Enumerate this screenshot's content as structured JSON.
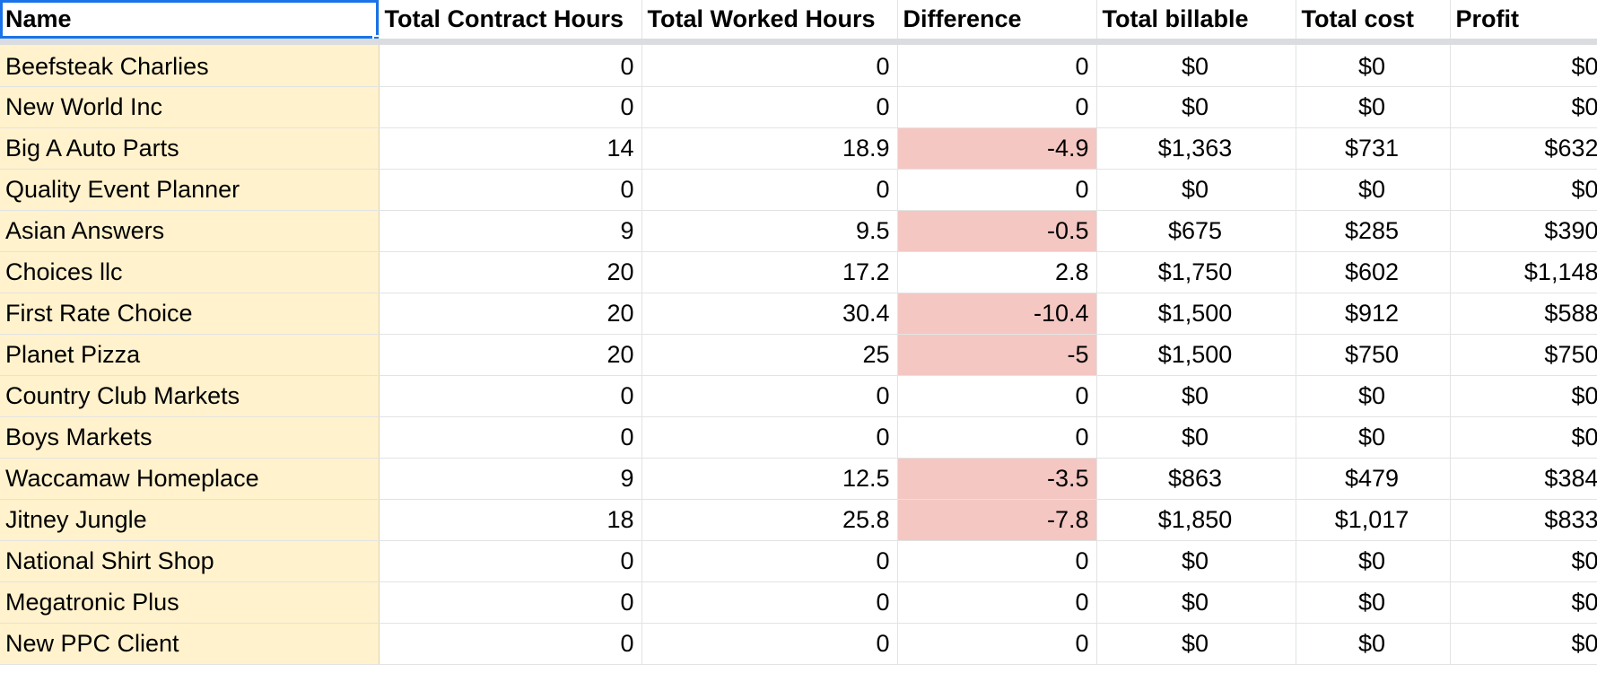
{
  "sheet": {
    "columns": [
      "Name",
      "Total Contract Hours",
      "Total Worked Hours",
      "Difference",
      "Total billable",
      "Total cost",
      "Profit"
    ],
    "rows": [
      {
        "name": "Beefsteak Charlies",
        "contract": "0",
        "worked": "0",
        "difference": "0",
        "billable": "$0",
        "cost": "$0",
        "profit": "$0",
        "negative": false
      },
      {
        "name": "New World Inc",
        "contract": "0",
        "worked": "0",
        "difference": "0",
        "billable": "$0",
        "cost": "$0",
        "profit": "$0",
        "negative": false
      },
      {
        "name": "Big A Auto Parts",
        "contract": "14",
        "worked": "18.9",
        "difference": "-4.9",
        "billable": "$1,363",
        "cost": "$731",
        "profit": "$632",
        "negative": true
      },
      {
        "name": "Quality Event Planner",
        "contract": "0",
        "worked": "0",
        "difference": "0",
        "billable": "$0",
        "cost": "$0",
        "profit": "$0",
        "negative": false
      },
      {
        "name": "Asian Answers",
        "contract": "9",
        "worked": "9.5",
        "difference": "-0.5",
        "billable": "$675",
        "cost": "$285",
        "profit": "$390",
        "negative": true
      },
      {
        "name": "Choices llc",
        "contract": "20",
        "worked": "17.2",
        "difference": "2.8",
        "billable": "$1,750",
        "cost": "$602",
        "profit": "$1,148",
        "negative": false
      },
      {
        "name": "First Rate Choice",
        "contract": "20",
        "worked": "30.4",
        "difference": "-10.4",
        "billable": "$1,500",
        "cost": "$912",
        "profit": "$588",
        "negative": true
      },
      {
        "name": "Planet Pizza",
        "contract": "20",
        "worked": "25",
        "difference": "-5",
        "billable": "$1,500",
        "cost": "$750",
        "profit": "$750",
        "negative": true
      },
      {
        "name": "Country Club Markets",
        "contract": "0",
        "worked": "0",
        "difference": "0",
        "billable": "$0",
        "cost": "$0",
        "profit": "$0",
        "negative": false
      },
      {
        "name": "Boys Markets",
        "contract": "0",
        "worked": "0",
        "difference": "0",
        "billable": "$0",
        "cost": "$0",
        "profit": "$0",
        "negative": false
      },
      {
        "name": "Waccamaw Homeplace",
        "contract": "9",
        "worked": "12.5",
        "difference": "-3.5",
        "billable": "$863",
        "cost": "$479",
        "profit": "$384",
        "negative": true
      },
      {
        "name": "Jitney Jungle",
        "contract": "18",
        "worked": "25.8",
        "difference": "-7.8",
        "billable": "$1,850",
        "cost": "$1,017",
        "profit": "$833",
        "negative": true
      },
      {
        "name": "National Shirt Shop",
        "contract": "0",
        "worked": "0",
        "difference": "0",
        "billable": "$0",
        "cost": "$0",
        "profit": "$0",
        "negative": false
      },
      {
        "name": "Megatronic Plus",
        "contract": "0",
        "worked": "0",
        "difference": "0",
        "billable": "$0",
        "cost": "$0",
        "profit": "$0",
        "negative": false
      },
      {
        "name": "New PPC Client",
        "contract": "0",
        "worked": "0",
        "difference": "0",
        "billable": "$0",
        "cost": "$0",
        "profit": "$0",
        "negative": false
      }
    ]
  },
  "colors": {
    "name_column_fill": "#fff2cc",
    "negative_fill": "#f4c7c3",
    "selection": "#1a73e8"
  }
}
